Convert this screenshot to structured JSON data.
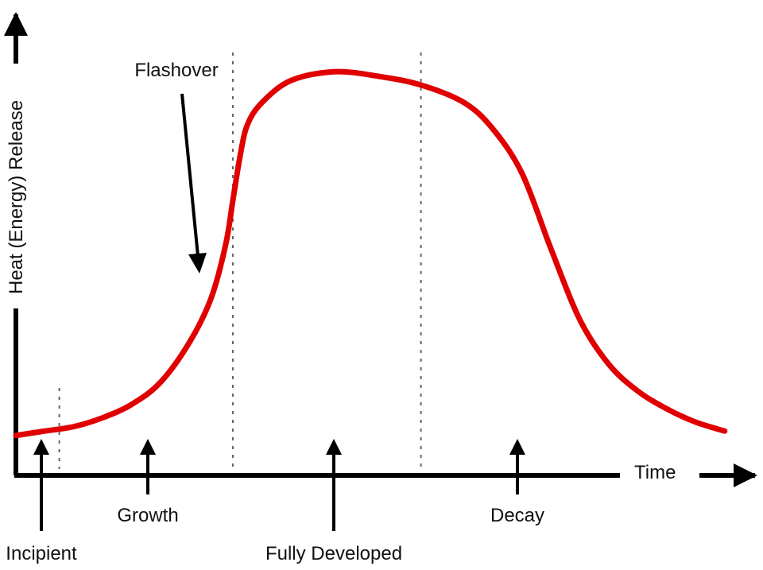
{
  "chart_data": {
    "type": "line",
    "title": "",
    "xlabel": "Time",
    "ylabel": "Heat (Energy) Release",
    "xlim": [
      0,
      100
    ],
    "ylim": [
      0,
      100
    ],
    "grid": false,
    "series": [
      {
        "color": "#e00000",
        "x": [
          0,
          4,
          8,
          12,
          16,
          20,
          24,
          27,
          29,
          30,
          31,
          32,
          34,
          38,
          44,
          50,
          56,
          62,
          66,
          70,
          74,
          78,
          82,
          86,
          90,
          94,
          98
        ],
        "y": [
          9,
          10,
          11,
          13,
          16,
          21,
          30,
          40,
          52,
          62,
          72,
          79,
          84,
          89,
          91,
          90,
          88,
          84,
          78,
          68,
          51,
          35,
          25,
          19,
          15,
          12,
          10
        ]
      }
    ],
    "phase_dividers": [
      6,
      30,
      56
    ],
    "annotations": [
      {
        "text": "Flashover",
        "points_to_x": 27,
        "points_to_y": 44
      },
      {
        "text": "Incipient",
        "x": 3
      },
      {
        "text": "Growth",
        "x": 18
      },
      {
        "text": "Fully Developed",
        "x": 43
      },
      {
        "text": "Decay",
        "x": 70
      }
    ]
  }
}
